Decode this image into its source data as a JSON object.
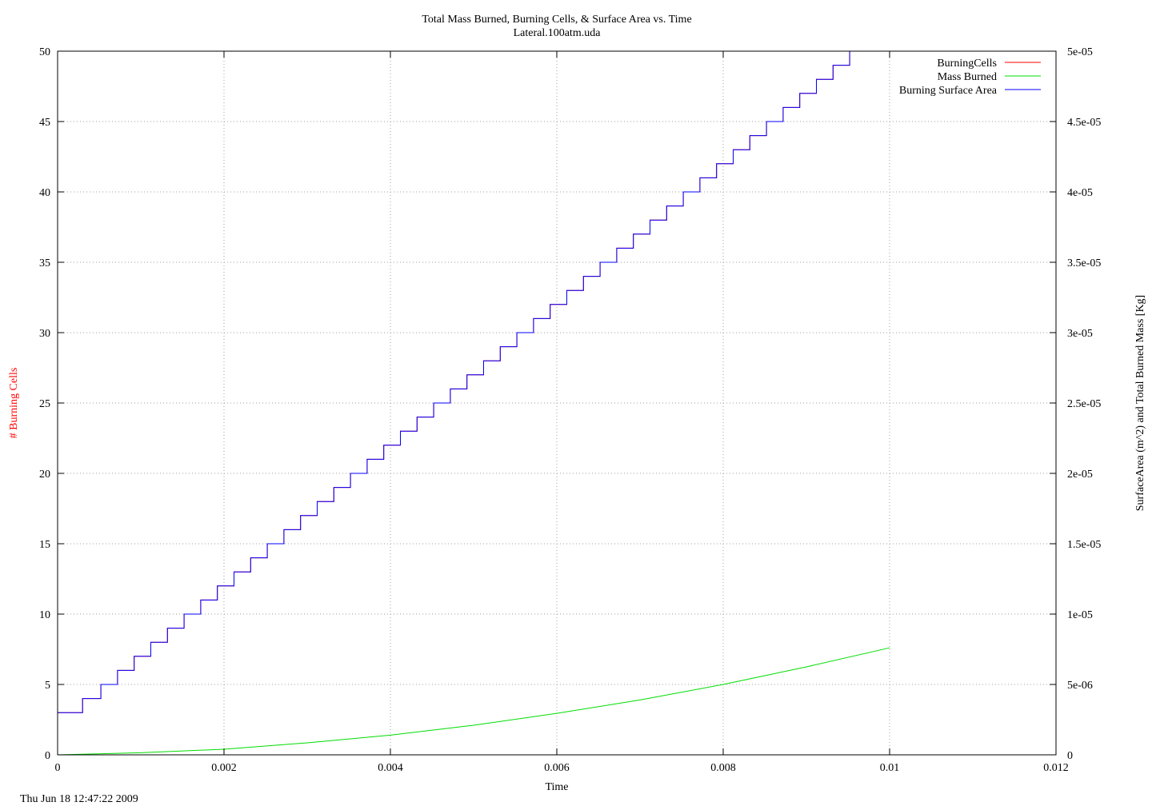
{
  "timestamp": "Thu Jun 18 12:47:22 2009",
  "chart_data": {
    "type": "line",
    "title": "Total Mass Burned, Burning Cells, & Surface Area vs. Time",
    "subtitle": "Lateral.100atm.uda",
    "xlabel": "Time",
    "ylabel": "# Burning Cells",
    "y2label": "SurfaceArea (m^2) and Total Burned Mass [Kg]",
    "xlim": [
      0,
      0.012
    ],
    "ylim": [
      0,
      50
    ],
    "y2lim": [
      0,
      5e-05
    ],
    "grid": true,
    "legend_position": "top-right",
    "x_ticks": [
      "0",
      "0.002",
      "0.004",
      "0.006",
      "0.008",
      "0.01",
      "0.012"
    ],
    "y_ticks": [
      "0",
      "5",
      "10",
      "15",
      "20",
      "25",
      "30",
      "35",
      "40",
      "45",
      "50"
    ],
    "y2_ticks": [
      "0",
      "5e-06",
      "1e-05",
      "1.5e-05",
      "2e-05",
      "2.5e-05",
      "3e-05",
      "3.5e-05",
      "4e-05",
      "4.5e-05",
      "5e-05"
    ],
    "series": [
      {
        "name": "BurningCells",
        "color": "#ff0000",
        "axis": "y",
        "style": "step",
        "x": [
          0,
          0.0003,
          0.00052,
          0.00072,
          0.00092,
          0.00112,
          0.00132,
          0.00152,
          0.00172,
          0.00192,
          0.00212,
          0.00232,
          0.00252,
          0.00272,
          0.00292,
          0.00312,
          0.00332,
          0.00352,
          0.00372,
          0.00392,
          0.00412,
          0.00432,
          0.00452,
          0.00472,
          0.00492,
          0.00512,
          0.00532,
          0.00552,
          0.00572,
          0.00592,
          0.00612,
          0.00632,
          0.00652,
          0.00672,
          0.00692,
          0.00712,
          0.00732,
          0.00752,
          0.00772,
          0.00792,
          0.00812,
          0.00832,
          0.00852,
          0.00872,
          0.00892,
          0.00912,
          0.00932,
          0.00952,
          0.00972,
          0.00992,
          0.01
        ],
        "values": [
          3,
          4,
          5,
          6,
          7,
          8,
          9,
          10,
          11,
          12,
          13,
          14,
          15,
          16,
          17,
          18,
          19,
          20,
          21,
          22,
          23,
          24,
          25,
          26,
          27,
          28,
          29,
          30,
          31,
          32,
          33,
          34,
          35,
          36,
          37,
          38,
          39,
          40,
          41,
          42,
          43,
          44,
          45,
          46,
          47,
          48,
          49,
          50,
          50,
          50,
          50
        ]
      },
      {
        "name": "Mass Burned",
        "color": "#00dd00",
        "axis": "y2",
        "style": "line",
        "x": [
          0,
          0.001,
          0.002,
          0.003,
          0.004,
          0.005,
          0.006,
          0.007,
          0.008,
          0.009,
          0.01
        ],
        "values": [
          0,
          1.5e-07,
          4e-07,
          8.5e-07,
          1.4e-06,
          2.1e-06,
          2.95e-06,
          3.9e-06,
          5e-06,
          6.25e-06,
          7.6e-06
        ]
      },
      {
        "name": "Burning Surface Area",
        "color": "#0000ff",
        "axis": "y2",
        "style": "step",
        "x": [
          0,
          0.0003,
          0.00052,
          0.00072,
          0.00092,
          0.00112,
          0.00132,
          0.00152,
          0.00172,
          0.00192,
          0.00212,
          0.00232,
          0.00252,
          0.00272,
          0.00292,
          0.00312,
          0.00332,
          0.00352,
          0.00372,
          0.00392,
          0.00412,
          0.00432,
          0.00452,
          0.00472,
          0.00492,
          0.00512,
          0.00532,
          0.00552,
          0.00572,
          0.00592,
          0.00612,
          0.00632,
          0.00652,
          0.00672,
          0.00692,
          0.00712,
          0.00732,
          0.00752,
          0.00772,
          0.00792,
          0.00812,
          0.00832,
          0.00852,
          0.00872,
          0.00892,
          0.00912,
          0.00932,
          0.00952,
          0.00972,
          0.00992,
          0.01
        ],
        "values": [
          3e-06,
          4e-06,
          5e-06,
          6e-06,
          7e-06,
          8e-06,
          9e-06,
          1e-05,
          1.1e-05,
          1.2e-05,
          1.3e-05,
          1.4e-05,
          1.5e-05,
          1.6e-05,
          1.7e-05,
          1.8e-05,
          1.9e-05,
          2e-05,
          2.1e-05,
          2.2e-05,
          2.3e-05,
          2.4e-05,
          2.5e-05,
          2.6e-05,
          2.7e-05,
          2.8e-05,
          2.9e-05,
          3e-05,
          3.1e-05,
          3.2e-05,
          3.3e-05,
          3.4e-05,
          3.5e-05,
          3.6e-05,
          3.7e-05,
          3.8e-05,
          3.9e-05,
          4e-05,
          4.1e-05,
          4.2e-05,
          4.3e-05,
          4.4e-05,
          4.5e-05,
          4.6e-05,
          4.7e-05,
          4.8e-05,
          4.9e-05,
          5e-05,
          5e-05,
          5e-05,
          5e-05
        ]
      }
    ]
  }
}
